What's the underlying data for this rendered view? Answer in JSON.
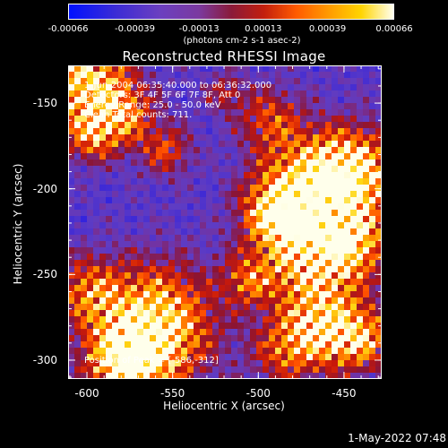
{
  "chart_data": {
    "type": "heatmap",
    "title": "Reconstructed RHESSI Image",
    "xlabel": "Heliocentric X (arcsec)",
    "ylabel": "Heliocentric Y (arcsec)",
    "xlim": [
      -611,
      -428
    ],
    "ylim": [
      -311,
      -128
    ],
    "x_ticks": [
      "-600",
      "-550",
      "-500",
      "-450"
    ],
    "x_tick_values": [
      -600,
      -550,
      -500,
      -450
    ],
    "y_ticks": [
      "-150",
      "-200",
      "-250",
      "-300"
    ],
    "y_tick_values": [
      -150,
      -200,
      -250,
      -300
    ],
    "colorbar": {
      "ticks": [
        "-0.00066",
        "-0.00039",
        "-0.00013",
        "0.00013",
        "0.00039",
        "0.00066"
      ],
      "tick_values": [
        -0.00066,
        -0.00039,
        -0.00013,
        0.00013,
        0.00039,
        0.00066
      ],
      "units": "(photons cm-2 s-1 asec-2)",
      "range": [
        -0.00066,
        0.00066
      ]
    },
    "annotations": [
      "1-Jun-2004 06:35:40.000 to 06:36:32.000",
      "Detectors: 3F 4F 5F 6F 7F 8F, Att 0",
      "Energy Range: 25.0 - 50.0 keV",
      "Clean     Total counts: 711.",
      "Position of Peak = [-586,-312]"
    ],
    "grid": false
  },
  "timestamp": "1-May-2022 07:48"
}
